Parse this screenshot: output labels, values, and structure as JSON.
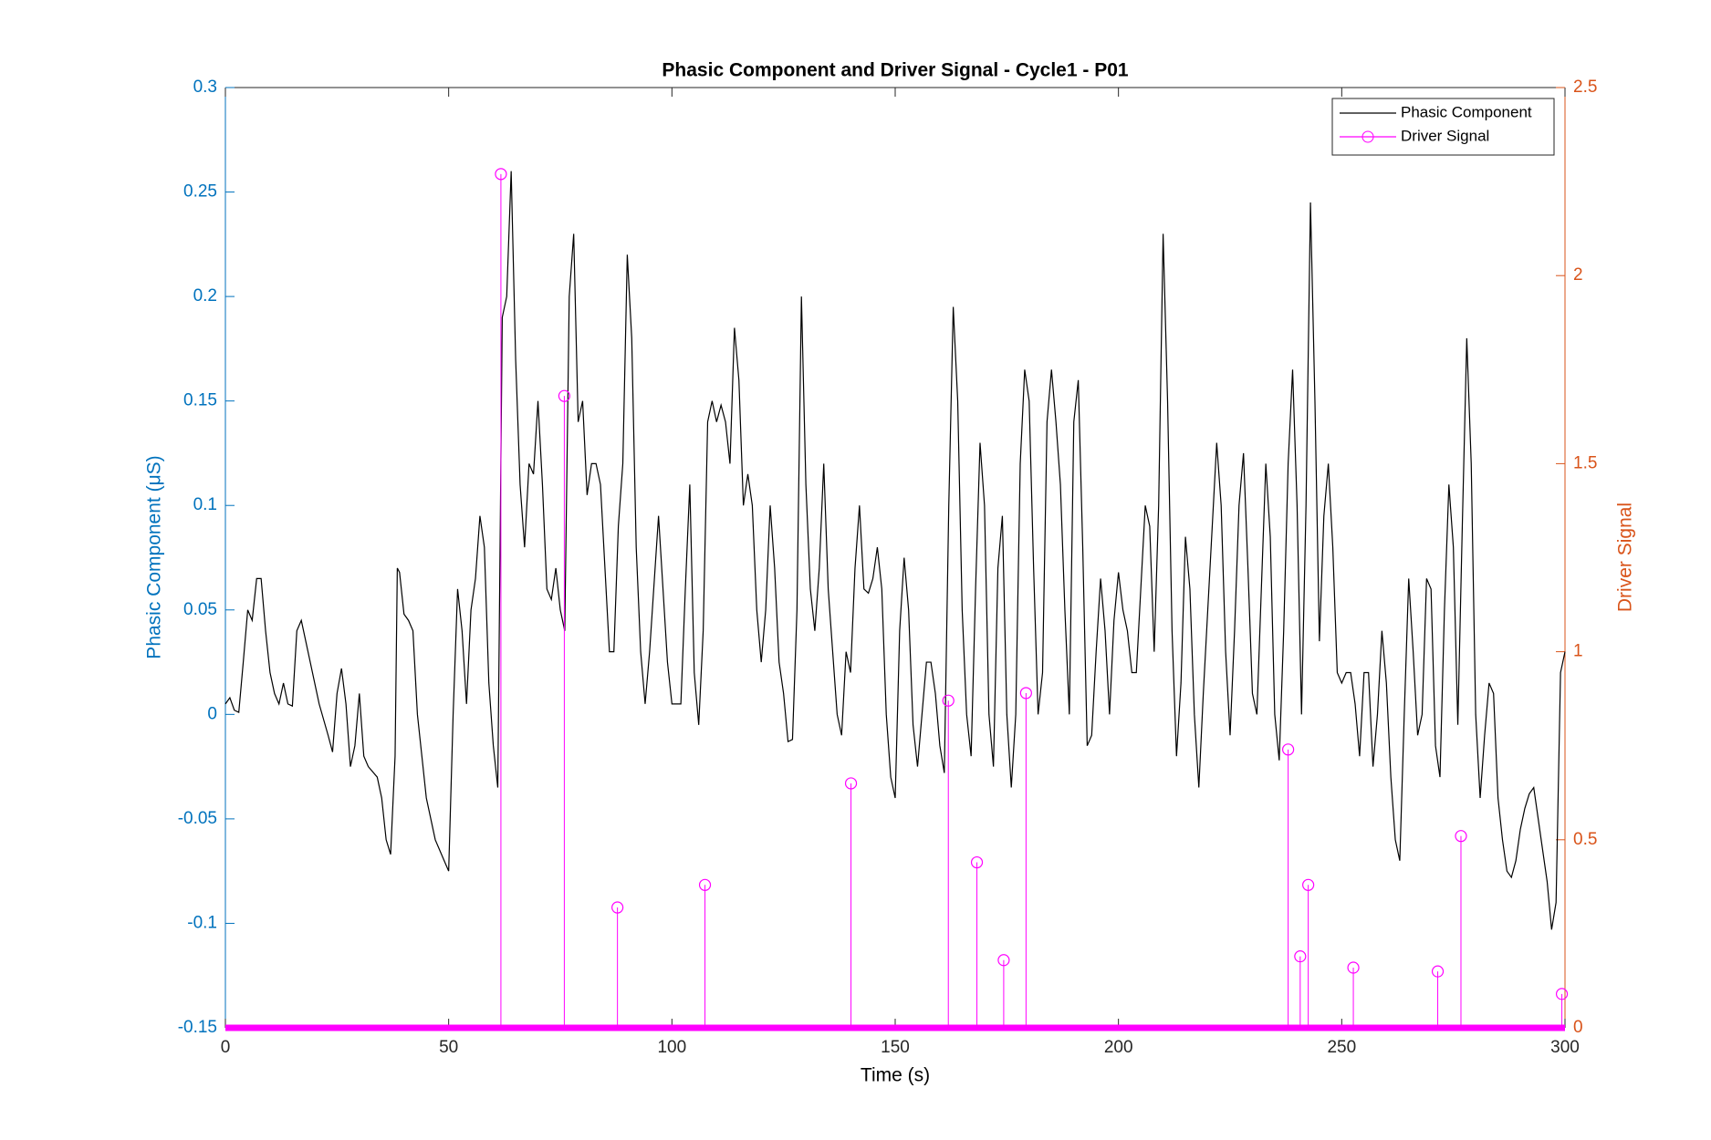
{
  "chart_data": {
    "type": "line",
    "title": "Phasic Component and Driver Signal - Cycle1 - P01",
    "xlabel": "Time (s)",
    "ylabel": "Phasic Component (μS)",
    "y2label": "Driver Signal",
    "xlim": [
      0,
      300
    ],
    "xticks": [
      0,
      50,
      100,
      150,
      200,
      250,
      300
    ],
    "ylim": [
      -0.15,
      0.3
    ],
    "yticks": [
      -0.15,
      -0.1,
      -0.05,
      0,
      0.05,
      0.1,
      0.15,
      0.2,
      0.25,
      0.3
    ],
    "y2lim": [
      0,
      2.5
    ],
    "y2ticks": [
      0,
      0.5,
      1,
      1.5,
      2,
      2.5
    ],
    "ycolor": "#0072BD",
    "y2color": "#D95319",
    "legend": "northeast",
    "series": [
      {
        "name": "Phasic Component",
        "color": "#000000",
        "axis": "y",
        "style": "line",
        "x": [
          0,
          1,
          2,
          3,
          4,
          5,
          6,
          7,
          8,
          9,
          10,
          11,
          12,
          13,
          14,
          15,
          16,
          17,
          18,
          19,
          20,
          21,
          23,
          24,
          25,
          26,
          27,
          28,
          29,
          30,
          31,
          32,
          34,
          35,
          36,
          37,
          38,
          38.5,
          39,
          40,
          41,
          42,
          43,
          44,
          45,
          47,
          49,
          50,
          51,
          52,
          53,
          54,
          55,
          56,
          57,
          58,
          59,
          60,
          61,
          62,
          63,
          64,
          65,
          66,
          67,
          68,
          69,
          70,
          71,
          72,
          73,
          74,
          75,
          76,
          77,
          78,
          79,
          80,
          81,
          82,
          83,
          84,
          85,
          86,
          87,
          88,
          89,
          90,
          91,
          92,
          93,
          94,
          95,
          97,
          98,
          99,
          100,
          102,
          103,
          104,
          105,
          106,
          107,
          108,
          109,
          110,
          111,
          112,
          113,
          114,
          115,
          116,
          117,
          118,
          119,
          120,
          121,
          122,
          123,
          124,
          125,
          126,
          127,
          128,
          129,
          130,
          131,
          132,
          133,
          134,
          135,
          136,
          137,
          138,
          139,
          140,
          141,
          142,
          143,
          144,
          145,
          146,
          147,
          148,
          149,
          150,
          151,
          152,
          153,
          154,
          155,
          156,
          157,
          158,
          159,
          160,
          161,
          162,
          163,
          164,
          165,
          166,
          167,
          168,
          169,
          170,
          171,
          172,
          173,
          174,
          175,
          176,
          177,
          178,
          179,
          180,
          181,
          182,
          183,
          184,
          185,
          186,
          187,
          188,
          189,
          190,
          191,
          192,
          193,
          194,
          195,
          196,
          197,
          198,
          199,
          200,
          201,
          202,
          203,
          204,
          205,
          206,
          207,
          208,
          209,
          210,
          211,
          212,
          213,
          214,
          215,
          216,
          217,
          218,
          219,
          220,
          221,
          222,
          223,
          224,
          225,
          226,
          227,
          228,
          229,
          230,
          231,
          232,
          233,
          234,
          235,
          236,
          237,
          238,
          239,
          240,
          241,
          242,
          243,
          244,
          245,
          246,
          247,
          248,
          249,
          250,
          251,
          252,
          253,
          254,
          255,
          256,
          257,
          258,
          259,
          260,
          261,
          262,
          263,
          264,
          265,
          266,
          267,
          268,
          269,
          270,
          271,
          272,
          273,
          274,
          275,
          276,
          277,
          278,
          279,
          280,
          281,
          282,
          283,
          284,
          285,
          286,
          287,
          288,
          289,
          290,
          291,
          292,
          293,
          294,
          295,
          296,
          297,
          298,
          299,
          300
        ],
        "values": [
          0.005,
          0.008,
          0.002,
          0.001,
          0.025,
          0.05,
          0.045,
          0.065,
          0.065,
          0.04,
          0.02,
          0.01,
          0.005,
          0.015,
          0.005,
          0.004,
          0.04,
          0.045,
          0.035,
          0.025,
          0.015,
          0.005,
          -0.01,
          -0.018,
          0.01,
          0.022,
          0.005,
          -0.025,
          -0.015,
          0.01,
          -0.02,
          -0.025,
          -0.03,
          -0.04,
          -0.06,
          -0.067,
          -0.02,
          0.07,
          0.068,
          0.048,
          0.045,
          0.04,
          0.0,
          -0.02,
          -0.04,
          -0.06,
          -0.07,
          -0.075,
          0.0,
          0.06,
          0.04,
          0.005,
          0.05,
          0.065,
          0.095,
          0.08,
          0.015,
          -0.015,
          -0.035,
          0.19,
          0.2,
          0.26,
          0.17,
          0.11,
          0.08,
          0.12,
          0.115,
          0.15,
          0.11,
          0.06,
          0.055,
          0.07,
          0.05,
          0.04,
          0.2,
          0.23,
          0.14,
          0.15,
          0.105,
          0.12,
          0.12,
          0.11,
          0.07,
          0.03,
          0.03,
          0.09,
          0.12,
          0.22,
          0.18,
          0.08,
          0.03,
          0.005,
          0.03,
          0.095,
          0.06,
          0.025,
          0.005,
          0.005,
          0.06,
          0.11,
          0.02,
          -0.005,
          0.04,
          0.14,
          0.15,
          0.14,
          0.148,
          0.14,
          0.12,
          0.185,
          0.16,
          0.1,
          0.115,
          0.1,
          0.05,
          0.025,
          0.05,
          0.1,
          0.07,
          0.025,
          0.01,
          -0.013,
          -0.012,
          0.05,
          0.2,
          0.11,
          0.06,
          0.04,
          0.07,
          0.12,
          0.06,
          0.03,
          0.0,
          -0.01,
          0.03,
          0.02,
          0.07,
          0.1,
          0.06,
          0.058,
          0.065,
          0.08,
          0.06,
          0.0,
          -0.03,
          -0.04,
          0.04,
          0.075,
          0.05,
          -0.005,
          -0.025,
          0.0,
          0.025,
          0.025,
          0.01,
          -0.015,
          -0.028,
          0.1,
          0.195,
          0.15,
          0.05,
          0.0,
          -0.02,
          0.06,
          0.13,
          0.1,
          0.0,
          -0.025,
          0.07,
          0.095,
          0.0,
          -0.035,
          0.0,
          0.12,
          0.165,
          0.15,
          0.07,
          0.0,
          0.02,
          0.14,
          0.165,
          0.14,
          0.11,
          0.05,
          0.0,
          0.14,
          0.16,
          0.08,
          -0.015,
          -0.01,
          0.03,
          0.065,
          0.04,
          0.0,
          0.045,
          0.068,
          0.05,
          0.04,
          0.02,
          0.02,
          0.06,
          0.1,
          0.09,
          0.03,
          0.1,
          0.23,
          0.15,
          0.04,
          -0.02,
          0.015,
          0.085,
          0.06,
          0.0,
          -0.035,
          0.01,
          0.05,
          0.09,
          0.13,
          0.1,
          0.03,
          -0.01,
          0.04,
          0.1,
          0.125,
          0.07,
          0.01,
          0.0,
          0.06,
          0.12,
          0.085,
          0.0,
          -0.022,
          0.04,
          0.12,
          0.165,
          0.1,
          0.0,
          0.1,
          0.245,
          0.15,
          0.035,
          0.095,
          0.12,
          0.08,
          0.02,
          0.015,
          0.02,
          0.02,
          0.005,
          -0.02,
          0.02,
          0.02,
          -0.025,
          0.0,
          0.04,
          0.015,
          -0.03,
          -0.06,
          -0.07,
          0.0,
          0.065,
          0.03,
          -0.01,
          0.0,
          0.065,
          0.06,
          -0.015,
          -0.03,
          0.05,
          0.11,
          0.08,
          -0.005,
          0.09,
          0.18,
          0.12,
          0.0,
          -0.04,
          -0.01,
          0.015,
          0.01,
          -0.04,
          -0.06,
          -0.075,
          -0.078,
          -0.07,
          -0.055,
          -0.045,
          -0.038,
          -0.035,
          -0.05,
          -0.065,
          -0.08,
          -0.103,
          -0.09,
          0.02,
          0.03
        ]
      },
      {
        "name": "Driver Signal",
        "color": "#FF00FF",
        "axis": "y2",
        "style": "stem",
        "x": [
          61.7,
          75.9,
          87.8,
          107.4,
          140.1,
          161.9,
          168.3,
          174.3,
          179.3,
          238.0,
          240.7,
          242.5,
          252.6,
          271.5,
          276.7,
          299.3
        ],
        "values": [
          2.27,
          1.68,
          0.32,
          0.38,
          0.65,
          0.87,
          0.44,
          0.18,
          0.89,
          0.74,
          0.19,
          0.38,
          0.16,
          0.15,
          0.51,
          0.09
        ]
      }
    ]
  }
}
